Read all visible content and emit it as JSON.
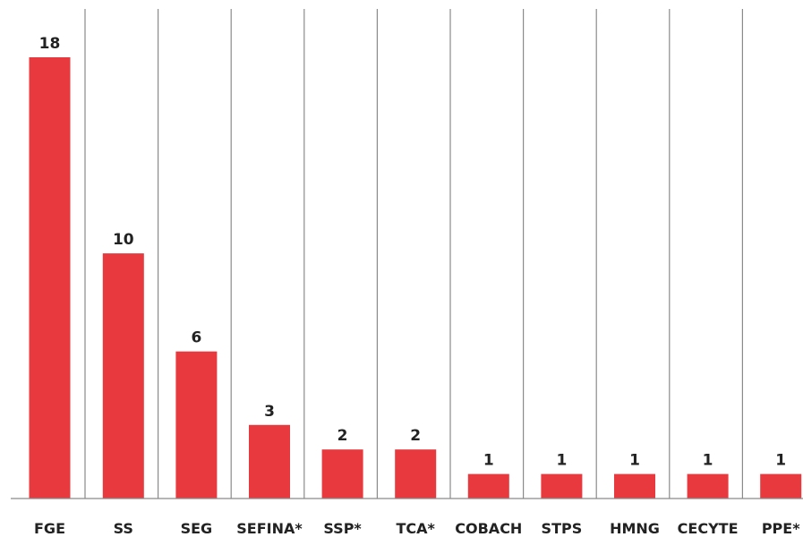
{
  "chart_data": {
    "type": "bar",
    "title": "",
    "xlabel": "",
    "ylabel": "",
    "categories": [
      "FGE",
      "SS",
      "SEG",
      "SEFINA*",
      "SSP*",
      "TCA*",
      "COBACH",
      "STPS",
      "HMNG",
      "CECYTE",
      "PPE*"
    ],
    "values": [
      18,
      10,
      6,
      3,
      2,
      2,
      1,
      1,
      1,
      1,
      1
    ],
    "value_labels": [
      "18",
      "10",
      "6",
      "3",
      "2",
      "2",
      "1",
      "1",
      "1",
      "1",
      "1"
    ],
    "ylim": [
      0,
      18
    ],
    "grid": false,
    "legend": "none",
    "colors": {
      "bar": "#e8393e",
      "divider": "#8a8a8a",
      "text": "#222222"
    }
  }
}
